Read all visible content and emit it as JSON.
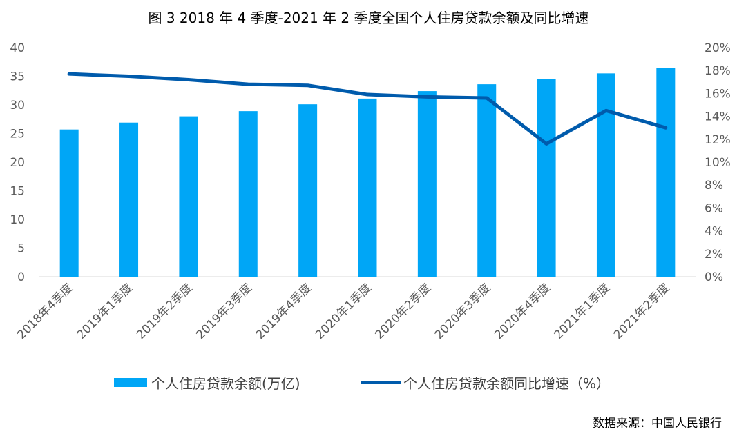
{
  "chart_data": {
    "type": "bar+line",
    "title": "图 3 2018 年 4 季度-2021 年 2 季度全国个人住房贷款余额及同比增速",
    "categories": [
      "2018年4季度",
      "2019年1季度",
      "2019年2季度",
      "2019年3季度",
      "2019年4季度",
      "2020年1季度",
      "2020年2季度",
      "2020年3季度",
      "2020年4季度",
      "2021年1季度",
      "2021年2季度"
    ],
    "series": [
      {
        "name": "个人住房贷款余额(万亿)",
        "type": "bar",
        "axis": "left",
        "color": "#00A6F6",
        "values": [
          25.7,
          26.9,
          28.0,
          28.9,
          30.1,
          31.1,
          32.4,
          33.6,
          34.5,
          35.5,
          36.5
        ]
      },
      {
        "name": "个人住房贷款余额同比增速（%）",
        "type": "line",
        "axis": "right",
        "color": "#005BAC",
        "values": [
          17.7,
          17.5,
          17.2,
          16.8,
          16.7,
          15.9,
          15.7,
          15.6,
          11.6,
          14.5,
          13.0
        ]
      }
    ],
    "left_axis": {
      "ylim": [
        0,
        40
      ],
      "ticks": [
        "0",
        "5",
        "10",
        "15",
        "20",
        "25",
        "30",
        "35",
        "40"
      ]
    },
    "right_axis": {
      "ylim": [
        0,
        20
      ],
      "ticks": [
        "0%",
        "2%",
        "4%",
        "6%",
        "8%",
        "10%",
        "12%",
        "14%",
        "16%",
        "18%",
        "20%"
      ]
    },
    "grid": false,
    "legend": "bottom",
    "source": "数据来源：中国人民银行"
  }
}
